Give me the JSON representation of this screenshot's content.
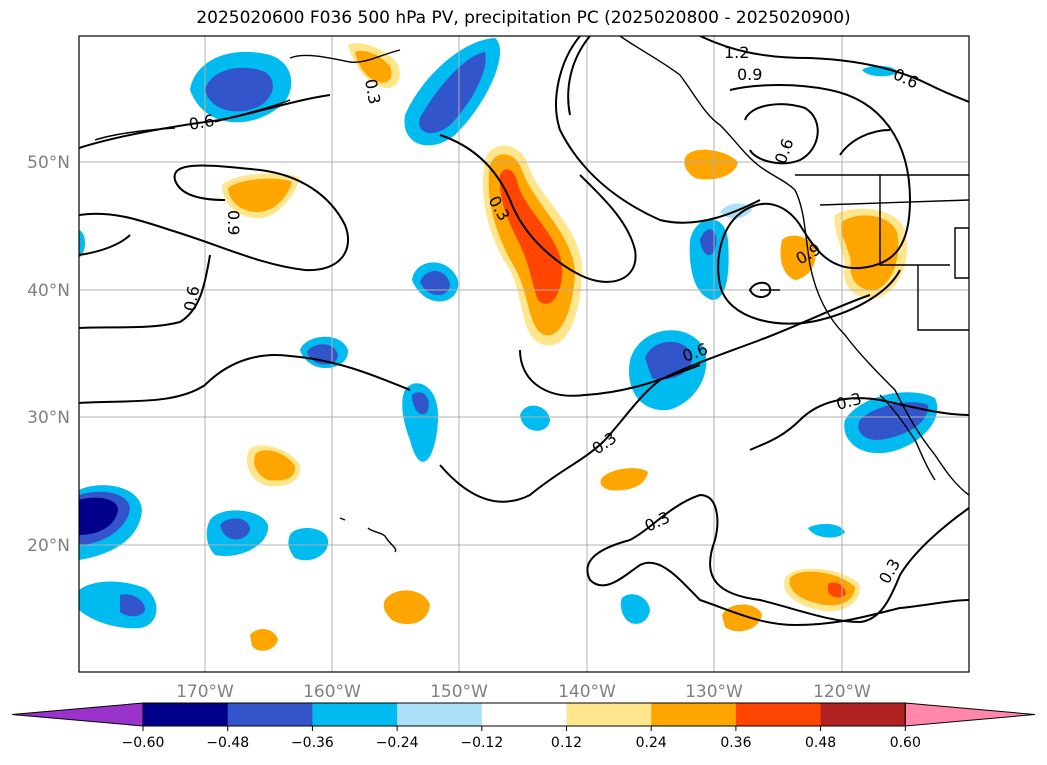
{
  "title": "2025020600 F036 500 hPa PV, precipitation PC (2025020800 - 2025020900)",
  "lat_labels": [
    "50°N",
    "40°N",
    "30°N",
    "20°N"
  ],
  "lon_labels": [
    "170°W",
    "160°W",
    "150°W",
    "140°W",
    "130°W",
    "120°W"
  ],
  "colorbar": {
    "ticks": [
      "−0.60",
      "−0.48",
      "−0.36",
      "−0.24",
      "−0.12",
      "0.12",
      "0.24",
      "0.36",
      "0.48",
      "0.60"
    ],
    "colors": [
      "#9933cc",
      "#00008b",
      "#3355cc",
      "#00bbf0",
      "#aae0fa",
      "#ffffff",
      "#ffe68c",
      "#ffa500",
      "#ff4500",
      "#b22222",
      "#ff88aa"
    ]
  },
  "contour_labels": [
    "1.2",
    "0.9",
    "0.6",
    "0.6",
    "0.3",
    "0.3",
    "0.6",
    "0.9",
    "0.6",
    "0.9",
    "0.3",
    "0.3",
    "0.3",
    "0.3",
    "0.6"
  ]
}
